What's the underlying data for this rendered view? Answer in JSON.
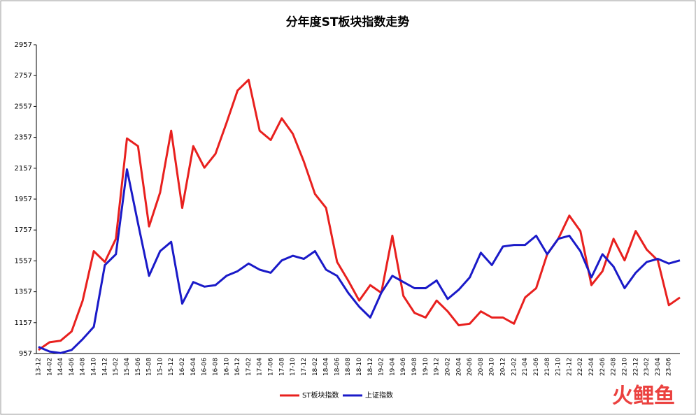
{
  "chart_data": {
    "type": "line",
    "title": "分年度ST板块指数走势",
    "categories": [
      "13-12",
      "14-02",
      "14-04",
      "14-06",
      "14-08",
      "14-10",
      "14-12",
      "15-02",
      "15-04",
      "15-06",
      "15-08",
      "15-10",
      "15-12",
      "16-02",
      "16-04",
      "16-06",
      "16-08",
      "16-10",
      "16-12",
      "17-02",
      "17-04",
      "17-06",
      "17-08",
      "17-10",
      "17-12",
      "18-02",
      "18-04",
      "18-06",
      "18-08",
      "18-10",
      "18-12",
      "19-02",
      "19-04",
      "19-06",
      "19-08",
      "19-10",
      "19-12",
      "20-02",
      "20-04",
      "20-06",
      "20-08",
      "20-10",
      "20-12",
      "21-02",
      "21-04",
      "21-06",
      "21-08",
      "21-10",
      "21-12",
      "22-02",
      "22-04",
      "22-06",
      "22-08",
      "22-10",
      "22-12",
      "23-02",
      "23-04",
      "23-06",
      null
    ],
    "series": [
      {
        "name": "ST板块指数",
        "color": "#e8201e",
        "values": [
          980,
          1030,
          1040,
          1100,
          1300,
          1620,
          1550,
          1700,
          2350,
          2300,
          1780,
          2000,
          2400,
          1900,
          2300,
          2160,
          2250,
          2450,
          2660,
          2730,
          2400,
          2340,
          2480,
          2380,
          2200,
          1990,
          1900,
          1550,
          1430,
          1300,
          1400,
          1350,
          1720,
          1330,
          1220,
          1190,
          1300,
          1230,
          1140,
          1150,
          1230,
          1190,
          1190,
          1150,
          1320,
          1380,
          1600,
          1700,
          1850,
          1750,
          1400,
          1490,
          1700,
          1560,
          1750,
          1630,
          1560,
          1270,
          1320
        ]
      },
      {
        "name": "上证指数",
        "color": "#1a1ac8",
        "values": [
          1000,
          970,
          960,
          980,
          1050,
          1130,
          1530,
          1600,
          2150,
          1800,
          1460,
          1620,
          1680,
          1280,
          1420,
          1390,
          1400,
          1460,
          1490,
          1540,
          1500,
          1480,
          1560,
          1590,
          1570,
          1620,
          1500,
          1460,
          1350,
          1260,
          1190,
          1350,
          1460,
          1420,
          1380,
          1380,
          1430,
          1310,
          1370,
          1450,
          1610,
          1530,
          1650,
          1660,
          1660,
          1720,
          1600,
          1700,
          1720,
          1620,
          1450,
          1600,
          1520,
          1380,
          1480,
          1550,
          1570,
          1540,
          1560
        ]
      }
    ],
    "ylim": [
      957,
      2957
    ],
    "yticks": [
      957,
      1157,
      1357,
      1557,
      1757,
      1957,
      2157,
      2357,
      2557,
      2757,
      2957
    ],
    "legend": "bottom",
    "watermark": "火鲤鱼"
  }
}
